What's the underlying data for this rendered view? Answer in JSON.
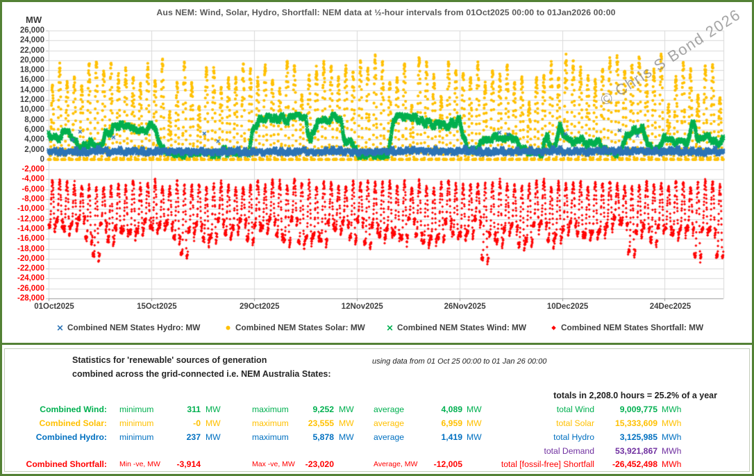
{
  "chart": {
    "title": "Aus NEM: Wind, Solar, Hydro, Shortfall: NEM data at ½-hour intervals from 01Oct2025 00:00 to 01Jan2026 00:00",
    "y_axis_title": "MW",
    "watermark": "© Chris S Bond 2026"
  },
  "chart_data": {
    "type": "scatter",
    "title": "Aus NEM: Wind, Solar, Hydro, Shortfall: NEM data at ½-hour intervals from 01Oct2025 00:00 to 01Jan2026 00:00",
    "interval": "30 minutes",
    "x_axis": {
      "start": "01Oct2025 00:00",
      "end": "01Jan2026 00:00",
      "days": 92,
      "tick_interval_days": 14,
      "tick_labels": [
        "01Oct2025",
        "15Oct2025",
        "29Oct2025",
        "12Nov2025",
        "26Nov2025",
        "10Dec2025",
        "24Dec2025"
      ]
    },
    "y_axis": {
      "title": "MW",
      "min": -28000,
      "max": 26000,
      "step": 2000,
      "positive_label_color": "#404040",
      "negative_label_color": "#ff0000"
    },
    "grid": true,
    "legend_position": "bottom",
    "series": [
      {
        "key": "hydro",
        "label": "Combined NEM States Hydro: MW",
        "color": "#2E75B6",
        "marker": "x",
        "min": 237,
        "max": 5878,
        "avg": 1419,
        "total_mwh": 3125985
      },
      {
        "key": "solar",
        "label": "Combined NEM States Solar: MW",
        "color": "#FFC000",
        "marker": "circle",
        "min": 0,
        "max": 23555,
        "avg": 6959,
        "total_mwh": 15333609
      },
      {
        "key": "wind",
        "label": "Combined NEM States Wind: MW",
        "color": "#00B050",
        "marker": "x",
        "min": 311,
        "max": 9252,
        "avg": 4089,
        "total_mwh": 9009775
      },
      {
        "key": "shortfall",
        "label": "Combined NEM States Shortfall: MW",
        "color": "#FF0000",
        "marker": "diamond",
        "min": -23020,
        "max": -3914,
        "avg": -12005,
        "total_mwh": -26452498
      }
    ],
    "watermark": "© Chris S Bond 2026"
  },
  "stats": {
    "heading_line1": "Statistics for 'renewable' sources of generation",
    "heading_line2": "combined across the grid-connected i.e. NEM Australia States:",
    "note": "using data from 01 Oct 25 00:00 to 01 Jan 26 00:00",
    "totals_header": "totals in 2,208.0 hours = 25.2% of a year",
    "unit_mw": "MW",
    "unit_mwh": "MWh",
    "rows": [
      {
        "key": "wind",
        "color": "#00B050",
        "label": "Combined Wind:",
        "min_label": "minimum",
        "min": "311",
        "max_label": "maximum",
        "max": "9,252",
        "avg_label": "average",
        "avg": "4,089",
        "total_label": "total Wind",
        "total": "9,009,775"
      },
      {
        "key": "solar",
        "color": "#FFC000",
        "label": "Combined Solar:",
        "min_label": "minimum",
        "min": "-0",
        "max_label": "maximum",
        "max": "23,555",
        "avg_label": "average",
        "avg": "6,959",
        "total_label": "total Solar",
        "total": "15,333,609"
      },
      {
        "key": "hydro",
        "color": "#0070C0",
        "label": "Combined Hydro:",
        "min_label": "minimum",
        "min": "237",
        "max_label": "maximum",
        "max": "5,878",
        "avg_label": "average",
        "avg": "1,419",
        "total_label": "total Hydro",
        "total": "3,125,985"
      }
    ],
    "demand_row": {
      "color": "#7030A0",
      "total_label": "total Demand",
      "total": "53,921,867"
    },
    "shortfall_row": {
      "color": "#FF0000",
      "label": "Combined Shortfall:",
      "min_label": "Min -ve, MW",
      "min": "-3,914",
      "max_label": "Max -ve, MW",
      "max": "-23,020",
      "avg_label": "Average, MW",
      "avg": "-12,005",
      "total_label": "total [fossil-free] Shortfall",
      "total": "-26,452,498"
    }
  }
}
